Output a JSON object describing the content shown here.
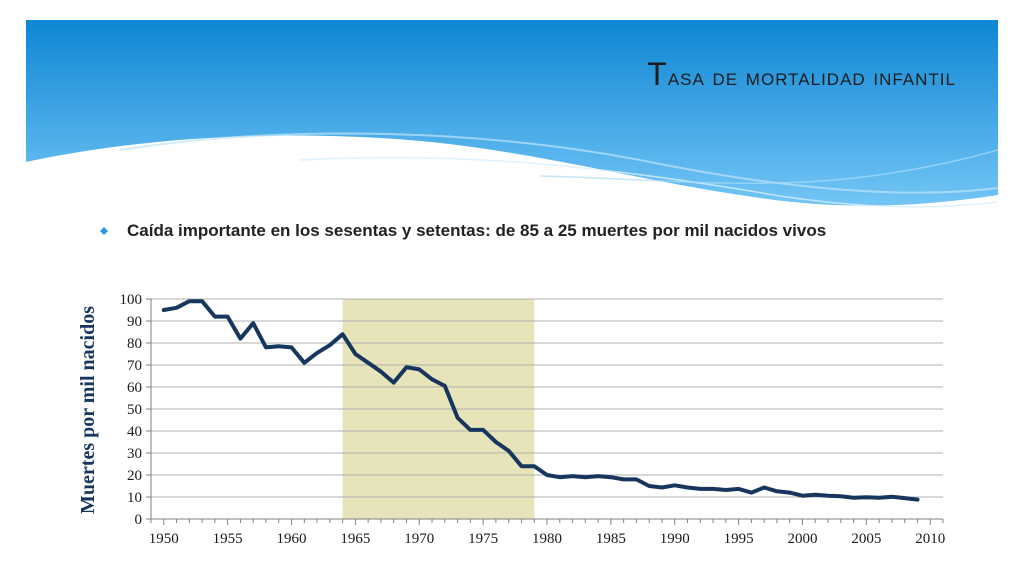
{
  "slide": {
    "title_first": "T",
    "title_rest": "asa de mortalidad infantil",
    "bullet": "Caída importante en los sesentas y setentas: de 85 a 25 muertes por mil nacidos vivos"
  },
  "colors": {
    "banner_top": "#0e86d4",
    "banner_bottom": "#73c5f5",
    "line": "#17365d",
    "highlight": "#e6e4b8",
    "bullet": "#2a98e0"
  },
  "chart_data": {
    "type": "line",
    "title": "",
    "xlabel": "",
    "ylabel": "Muertes por mil nacidos",
    "xlim": [
      1949,
      2011
    ],
    "ylim": [
      0,
      100
    ],
    "grid": true,
    "x_ticks": [
      1950,
      1955,
      1960,
      1965,
      1970,
      1975,
      1980,
      1985,
      1990,
      1995,
      2000,
      2005,
      2010
    ],
    "y_ticks": [
      0,
      10,
      20,
      30,
      40,
      50,
      60,
      70,
      80,
      90,
      100
    ],
    "highlight_range": [
      1964,
      1979
    ],
    "series": [
      {
        "x": [
          1950,
          1951,
          1952,
          1953,
          1954,
          1955,
          1956,
          1957,
          1958,
          1959,
          1960,
          1961,
          1962,
          1963,
          1964,
          1965,
          1966,
          1967,
          1968,
          1969,
          1970,
          1971,
          1972,
          1973,
          1974,
          1975,
          1976,
          1977,
          1978,
          1979,
          1980,
          1981,
          1982,
          1983,
          1984,
          1985,
          1986,
          1987,
          1988,
          1989,
          1990,
          1991,
          1992,
          1993,
          1994,
          1995,
          1996,
          1997,
          1998,
          1999,
          2000,
          2001,
          2002,
          2003,
          2004,
          2005,
          2006,
          2007,
          2008,
          2009
        ],
        "values": [
          95,
          96,
          99,
          99,
          92,
          92,
          82,
          89,
          78,
          78.5,
          78,
          71,
          75.5,
          79,
          84,
          75,
          71,
          67,
          62,
          69,
          68,
          63.5,
          60.5,
          46,
          40.5,
          40.5,
          35,
          31,
          24,
          24,
          20,
          19,
          19.5,
          19,
          19.5,
          19,
          18,
          18,
          15,
          14.3,
          15.3,
          14.3,
          13.7,
          13.7,
          13.2,
          13.7,
          12,
          14.3,
          12.6,
          12,
          10.6,
          11,
          10.6,
          10.3,
          9.7,
          9.9,
          9.7,
          10.1,
          9.5,
          8.8
        ]
      }
    ]
  }
}
